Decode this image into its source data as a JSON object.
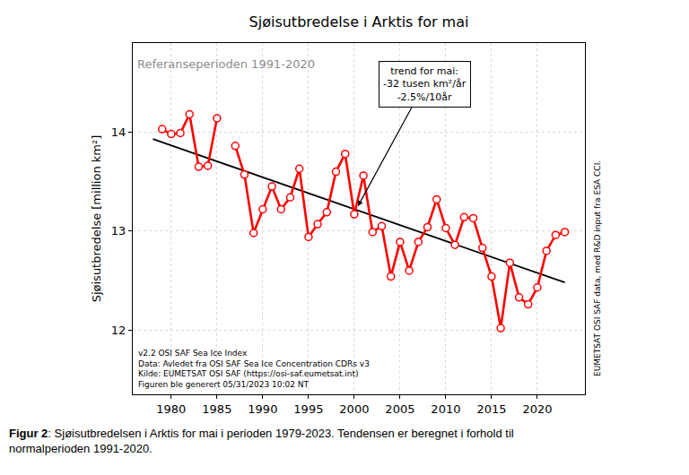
{
  "chart_data": {
    "type": "line",
    "title": "Sjøisutbredelse i Arktis for mai",
    "y_label": "Sjøisutbredelse [million km²]",
    "x": [
      1979,
      1980,
      1981,
      1982,
      1983,
      1984,
      1985,
      1986,
      1987,
      1988,
      1989,
      1990,
      1991,
      1992,
      1993,
      1994,
      1995,
      1996,
      1997,
      1998,
      1999,
      2000,
      2001,
      2002,
      2003,
      2004,
      2005,
      2006,
      2007,
      2008,
      2009,
      2010,
      2011,
      2012,
      2013,
      2014,
      2015,
      2016,
      2017,
      2018,
      2019,
      2020,
      2021,
      2022,
      2023
    ],
    "xlim": [
      1975.8,
      2025.2
    ],
    "xticks": [
      1980,
      1985,
      1990,
      1995,
      2000,
      2005,
      2010,
      2015,
      2020
    ],
    "ylim": [
      11.35,
      14.9
    ],
    "yticks": [
      12,
      13,
      14
    ],
    "grid": true,
    "series": [
      {
        "type": "line",
        "color": "#ff0000",
        "marker": "circle",
        "line_style": "solid",
        "values": [
          14.03,
          13.98,
          13.99,
          14.18,
          13.65,
          13.66,
          14.14,
          null,
          13.86,
          13.57,
          12.98,
          13.22,
          13.45,
          13.22,
          13.34,
          13.63,
          12.94,
          13.07,
          13.19,
          13.6,
          13.78,
          13.17,
          13.56,
          12.99,
          13.05,
          12.54,
          12.89,
          12.6,
          12.89,
          13.04,
          13.32,
          13.03,
          12.86,
          13.14,
          13.13,
          12.83,
          12.54,
          12.02,
          12.68,
          12.33,
          12.26,
          12.43,
          12.8,
          12.96,
          12.99
        ]
      },
      {
        "type": "line",
        "color": "#000000",
        "line_style": "solid",
        "x": [
          1978,
          2023
        ],
        "values": [
          13.93,
          12.48
        ]
      }
    ],
    "annotations": {
      "reference": "Referanseperioden 1991-2020",
      "trend": [
        "trend for mai:",
        "-32 tusen km²/år",
        "-2.5%/10år"
      ],
      "source": [
        "v2.2 OSI SAF Sea Ice Index",
        "Data: Avledet fra OSI SAF Sea Ice Concentration CDRs v3",
        "Kilde: EUMETSAT OSI SAF (https://osi-saf.eumetsat.int)",
        "Figuren ble generert 05/31/2023 10:02 NT"
      ],
      "credit": "EUMETSAT OSI SAF data, med R&D input fra ESA CCI.",
      "caption": {
        "label": "Figur 2",
        "lines": [
          ": Sjøisutbredelsen i Arktis for mai i perioden 1979-2023. Tendensen er beregnet i forhold til",
          "normalperioden 1991-2020."
        ]
      }
    }
  }
}
